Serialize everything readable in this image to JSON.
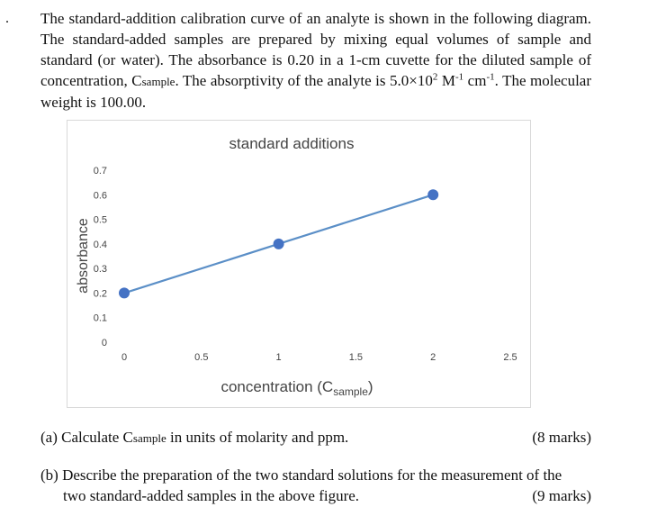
{
  "bullet": ".",
  "intro": {
    "line1": "The standard-addition calibration curve of an analyte is shown in the following",
    "line2": "diagram. The standard-added samples are prepared by mixing equal volumes of sample",
    "line3": "and standard (or water). The absorbance is 0.20 in a 1-cm cuvette for the diluted sample",
    "line4_a": "of concentration, C",
    "line4_sub": "sample",
    "line4_b": ". The absorptivity of the analyte is 5.0×10",
    "line4_sup1": "2",
    "line4_c": " M",
    "line4_sup2": "-1",
    "line4_d": " cm",
    "line4_sup3": "-1",
    "line4_e": ". The",
    "line5": "molecular weight is 100.00."
  },
  "chart_data": {
    "type": "line",
    "title": "standard additions",
    "xlabel": "concentration (C",
    "xlabel_sub": "sample",
    "xlabel_end": ")",
    "ylabel": "absorbance",
    "x_ticks": [
      "0",
      "0.5",
      "1",
      "1.5",
      "2",
      "2.5"
    ],
    "y_ticks": [
      "0",
      "0.1",
      "0.2",
      "0.3",
      "0.4",
      "0.5",
      "0.6",
      "0.7"
    ],
    "xlim": [
      0,
      2.5
    ],
    "ylim": [
      0,
      0.7
    ],
    "series": [
      {
        "x": [
          0,
          1,
          2
        ],
        "y": [
          0.2,
          0.4,
          0.6
        ]
      }
    ],
    "grid": false,
    "line_color": "#5b8fc7",
    "marker_color": "#4472c4"
  },
  "questions": {
    "a_text": "(a) Calculate C",
    "a_sub": "sample",
    "a_rest": " in units of molarity and ppm.",
    "a_marks": "(8 marks)",
    "b_line1": "(b) Describe the preparation of the two standard solutions for the measurement of the",
    "b_line2": "two standard-added samples in the above figure.",
    "b_marks": "(9 marks)"
  }
}
